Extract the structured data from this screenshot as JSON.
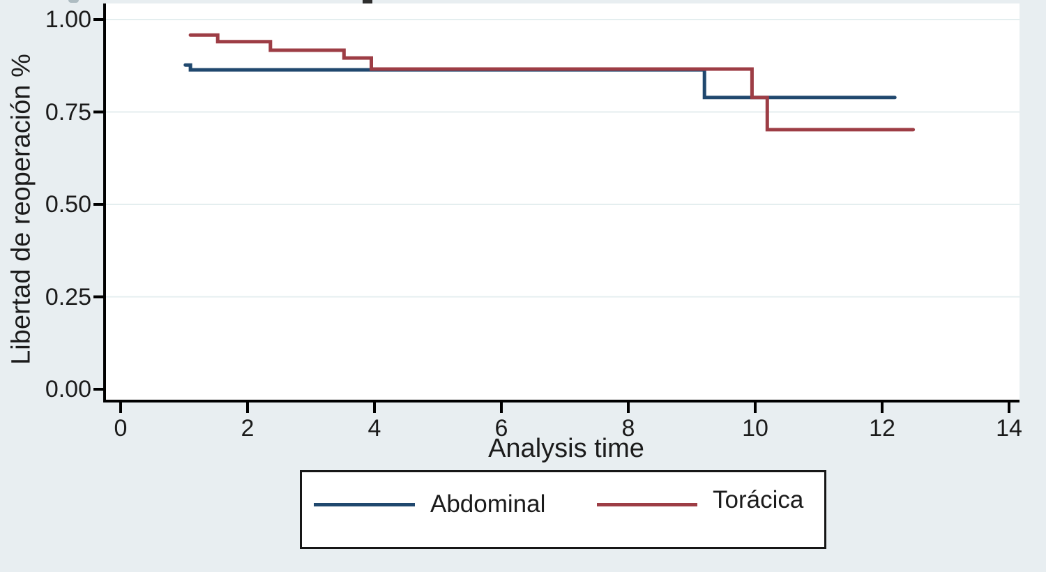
{
  "figure": {
    "background_color": "#e8eef1",
    "plot_background": "#ffffff",
    "grid_color": "#e4eeef",
    "axis_color": "#000000",
    "text_color": "#1b1b1b"
  },
  "chart_data": {
    "type": "line",
    "chart_style": "kaplan-meier-step",
    "title": "",
    "xlabel": "Analysis time",
    "ylabel": "Libertad de reoperación %",
    "xlim": [
      0,
      14
    ],
    "ylim": [
      0.0,
      1.0
    ],
    "x_ticks": [
      0,
      2,
      4,
      6,
      8,
      10,
      12,
      14
    ],
    "y_ticks": [
      {
        "label": "0.00",
        "value": 0.0
      },
      {
        "label": "0.25",
        "value": 0.25
      },
      {
        "label": "0.50",
        "value": 0.5
      },
      {
        "label": "0.75",
        "value": 0.75
      },
      {
        "label": "1.00",
        "value": 1.0
      }
    ],
    "grid": "horizontal-only",
    "legend_position": "bottom-center",
    "series": [
      {
        "name": "Abdominal",
        "color": "#20486e",
        "steps_time_survival": [
          [
            1.02,
            0.877
          ],
          [
            1.1,
            0.864
          ],
          [
            9.2,
            0.789
          ],
          [
            12.2,
            0.789
          ]
        ]
      },
      {
        "name": "Torácica",
        "color": "#9d3d45",
        "steps_time_survival": [
          [
            1.1,
            0.958
          ],
          [
            1.53,
            0.94
          ],
          [
            2.36,
            0.917
          ],
          [
            3.52,
            0.896
          ],
          [
            3.95,
            0.866
          ],
          [
            9.95,
            0.789
          ],
          [
            10.19,
            0.702
          ],
          [
            12.49,
            0.702
          ]
        ]
      }
    ]
  }
}
